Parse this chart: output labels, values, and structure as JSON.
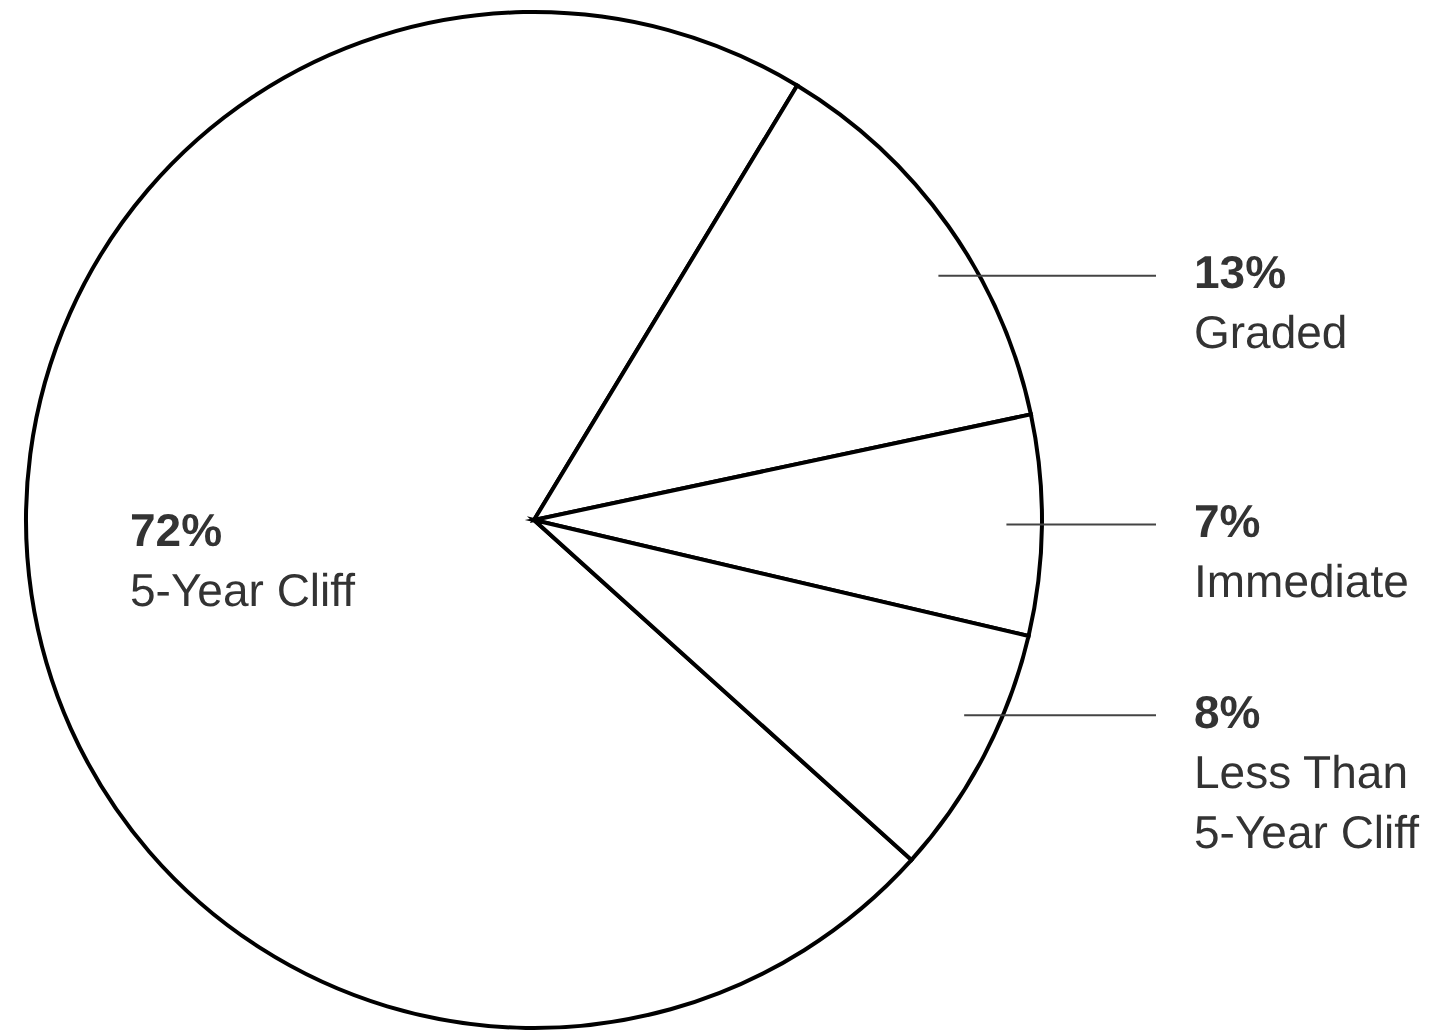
{
  "chart_data": {
    "type": "pie",
    "categories": [
      "5-Year Cliff",
      "Graded",
      "Immediate",
      "Less Than 5-Year Cliff"
    ],
    "values": [
      72,
      13,
      7,
      8
    ],
    "colors": [
      "#ffffff",
      "#ffffff",
      "#ffffff",
      "#ffffff"
    ],
    "value_labels": [
      "72%",
      "13%",
      "7%",
      "8%"
    ]
  }
}
